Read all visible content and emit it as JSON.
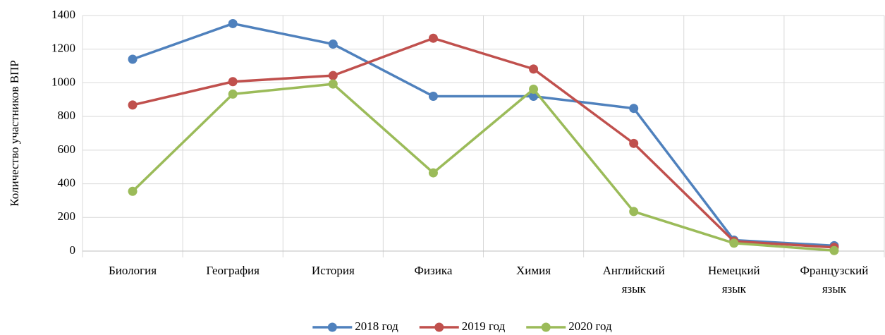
{
  "chart_data": {
    "type": "line",
    "y_label": "Количество участников ВПР",
    "categories": [
      "Биология",
      "География",
      "История",
      "Физика",
      "Химия",
      "Английский язык",
      "Немецкий язык",
      "Французский язык"
    ],
    "series": [
      {
        "name": "2018 год",
        "color": "#4f81bd",
        "values": [
          1140,
          1352,
          1230,
          920,
          920,
          848,
          65,
          32
        ]
      },
      {
        "name": "2019 год",
        "color": "#c0504d",
        "values": [
          868,
          1007,
          1043,
          1265,
          1082,
          640,
          58,
          22
        ]
      },
      {
        "name": "2020 год",
        "color": "#9bbb59",
        "values": [
          355,
          933,
          993,
          465,
          962,
          235,
          47,
          3
        ]
      }
    ],
    "ylim": [
      0,
      1400
    ],
    "yticks": [
      0,
      200,
      400,
      600,
      800,
      1000,
      1200,
      1400
    ],
    "grid": true,
    "legend": "bottom"
  }
}
